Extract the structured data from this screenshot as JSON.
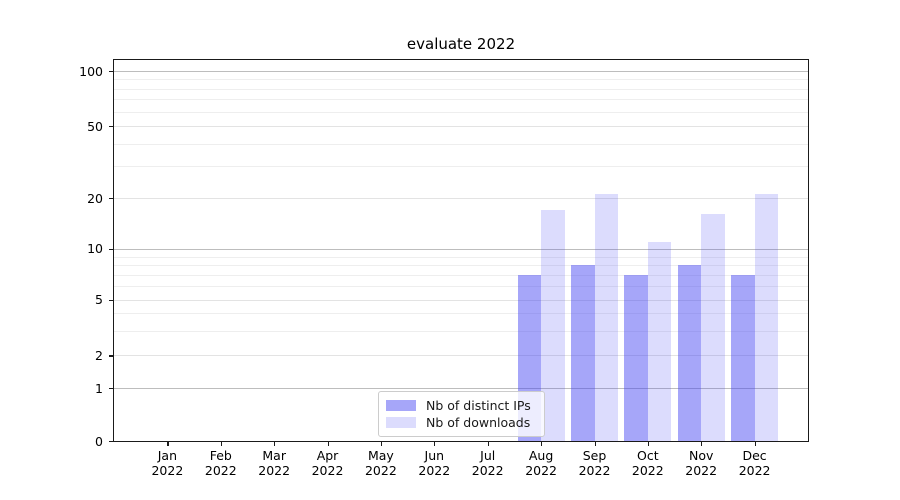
{
  "title": "evaluate 2022",
  "chart_data": {
    "type": "bar",
    "title": "evaluate 2022",
    "categories": [
      "Jan 2022",
      "Feb 2022",
      "Mar 2022",
      "Apr 2022",
      "May 2022",
      "Jun 2022",
      "Jul 2022",
      "Aug 2022",
      "Sep 2022",
      "Oct 2022",
      "Nov 2022",
      "Dec 2022"
    ],
    "series": [
      {
        "name": "Nb of distinct IPs",
        "values": [
          0,
          0,
          0,
          0,
          0,
          0,
          0,
          7,
          8,
          7,
          8,
          7
        ],
        "fill": "rgba(70,70,242,0.48)",
        "color_hex": "#a6a6f8"
      },
      {
        "name": "Nb of downloads",
        "values": [
          0,
          0,
          0,
          0,
          0,
          0,
          0,
          17,
          21,
          11,
          16,
          21
        ],
        "fill": "rgba(70,70,242,0.19)",
        "color_hex": "#dcdcf9"
      }
    ],
    "xlabel": "",
    "ylabel": "",
    "yscale": "symlog",
    "ylim": [
      0,
      113
    ],
    "ytick_values": [
      0,
      1,
      2,
      5,
      10,
      20,
      50,
      100
    ],
    "ytick_labels": [
      "0",
      "1",
      "2",
      "5",
      "10",
      "20",
      "50",
      "100"
    ],
    "minor_gridline_values": [
      3,
      4,
      6,
      7,
      8,
      9,
      30,
      40,
      60,
      70,
      80,
      90
    ],
    "major_gridline_values": [
      1,
      10,
      100
    ],
    "grid": "horizontal, major and minor",
    "legend_position": "lower center inside plot",
    "bar_layout": "pairs side-by-side centered on month tick"
  },
  "colors": {
    "bar_dark": "#a6a6f8",
    "bar_light": "#dcdcf9",
    "grid_major": "#bdbdbd",
    "grid_minor": "#eeeeee",
    "spine": "#1a1a1a",
    "legend_border": "#cccccc"
  }
}
